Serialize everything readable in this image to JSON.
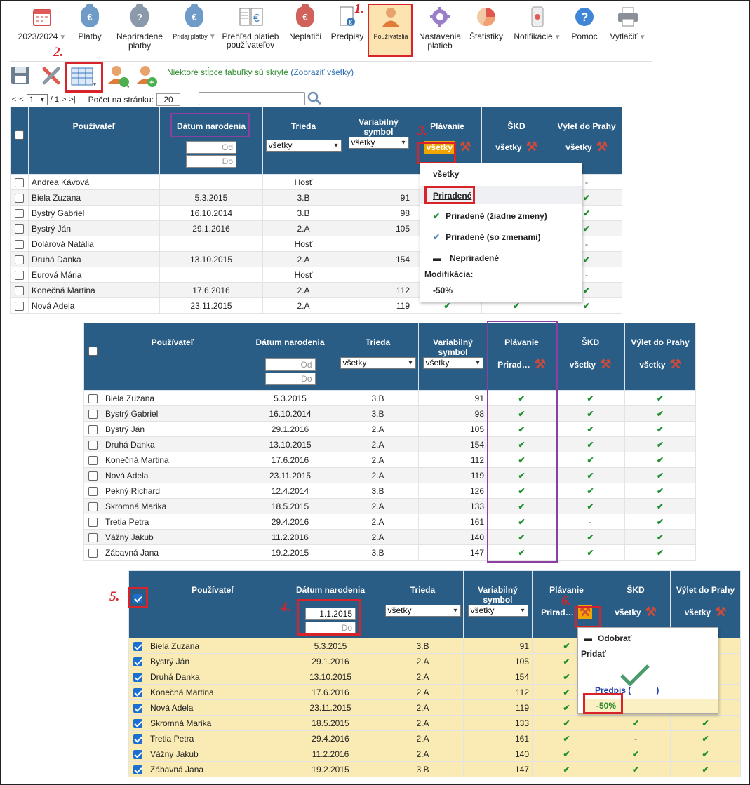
{
  "toolbar": {
    "items": [
      {
        "label": "2023/2024",
        "icon": "calendar-icon"
      },
      {
        "label": "Platby",
        "icon": "money-bag-icon"
      },
      {
        "label": "Nepriradené platby",
        "icon": "money-bag-question-icon"
      },
      {
        "label": "Pridaj platby",
        "icon": "money-bag-add-icon"
      },
      {
        "label": "Prehľad platieb používateľov",
        "icon": "euro-document-icon"
      },
      {
        "label": "Neplatiči",
        "icon": "money-bag-clock-icon"
      },
      {
        "label": "Predpisy",
        "icon": "document-euro-icon"
      },
      {
        "label": "Používatelia",
        "icon": "user-icon"
      },
      {
        "label": "Nastavenia platieb",
        "icon": "gear-icon"
      },
      {
        "label": "Štatistiky",
        "icon": "pie-chart-icon"
      },
      {
        "label": "Notifikácie",
        "icon": "phone-icon"
      },
      {
        "label": "Pomoc",
        "icon": "help-icon"
      },
      {
        "label": "Vytlačiť",
        "icon": "printer-icon"
      }
    ]
  },
  "steps": [
    "1.",
    "2.",
    "3.",
    "4.",
    "5.",
    "6."
  ],
  "hidden_notice": "Niektoré stĺpce tabuľky sú skryté",
  "show_all": "(Zobraziť všetky)",
  "pager": {
    "first": "|<",
    "prev": "<",
    "page": "1",
    "of": "/ 1",
    "next": ">",
    "last": ">|",
    "per_page_label": "Počet na stránku:",
    "per_page": "20"
  },
  "headers": {
    "user": "Používateľ",
    "dob": "Dátum narodenia",
    "class": "Trieda",
    "vs": "Variabilný symbol",
    "swim": "Plávanie",
    "skd": "ŠKD",
    "trip": "Výlet do Prahy"
  },
  "filters": {
    "all": "všetky",
    "from": "Od",
    "to": "Do",
    "assigned_short": "Prirad…",
    "date_from_value": "1.1.2015"
  },
  "table1": [
    [
      "Andrea Kávová",
      "",
      "Hosť",
      "",
      ""
    ],
    [
      "Biela Zuzana",
      "5.3.2015",
      "3.B",
      "91",
      "✔"
    ],
    [
      "Bystrý Gabriel",
      "16.10.2014",
      "3.B",
      "98",
      "✔"
    ],
    [
      "Bystrý Ján",
      "29.1.2016",
      "2.A",
      "105",
      "✔"
    ],
    [
      "Dolárová Natália",
      "",
      "Hosť",
      "",
      "-"
    ],
    [
      "Druhá Danka",
      "13.10.2015",
      "2.A",
      "154",
      "✔"
    ],
    [
      "Eurová Mária",
      "",
      "Hosť",
      "",
      "-"
    ],
    [
      "Konečná Martina",
      "17.6.2016",
      "2.A",
      "112",
      "✔"
    ],
    [
      "Nová Adela",
      "23.11.2015",
      "2.A",
      "119",
      "✔"
    ]
  ],
  "table1_extra": [
    [
      "-",
      "-"
    ],
    [
      "✔",
      "✔"
    ],
    [
      "✔",
      "✔"
    ],
    [
      "✔",
      "✔"
    ],
    [
      "-",
      "-"
    ],
    [
      "✔",
      "✔"
    ],
    [
      "-",
      "-"
    ],
    [
      "✔",
      "✔"
    ],
    [
      "✔",
      "✔"
    ]
  ],
  "table2": [
    [
      "Biela Zuzana",
      "5.3.2015",
      "3.B",
      "91",
      "✔",
      "✔",
      "✔"
    ],
    [
      "Bystrý Gabriel",
      "16.10.2014",
      "3.B",
      "98",
      "✔",
      "✔",
      "✔"
    ],
    [
      "Bystrý Ján",
      "29.1.2016",
      "2.A",
      "105",
      "✔",
      "✔",
      "✔"
    ],
    [
      "Druhá Danka",
      "13.10.2015",
      "2.A",
      "154",
      "✔",
      "✔",
      "✔"
    ],
    [
      "Konečná Martina",
      "17.6.2016",
      "2.A",
      "112",
      "✔",
      "✔",
      "✔"
    ],
    [
      "Nová Adela",
      "23.11.2015",
      "2.A",
      "119",
      "✔",
      "✔",
      "✔"
    ],
    [
      "Pekný Richard",
      "12.4.2014",
      "3.B",
      "126",
      "✔",
      "✔",
      "✔"
    ],
    [
      "Skromná Marika",
      "18.5.2015",
      "2.A",
      "133",
      "✔",
      "✔",
      "✔"
    ],
    [
      "Tretia Petra",
      "29.4.2016",
      "2.A",
      "161",
      "✔",
      "-",
      "✔"
    ],
    [
      "Vážny Jakub",
      "11.2.2016",
      "2.A",
      "140",
      "✔",
      "✔",
      "✔"
    ],
    [
      "Zábavná Jana",
      "19.2.2015",
      "3.B",
      "147",
      "✔",
      "✔",
      "✔"
    ]
  ],
  "table3": [
    [
      "Biela Zuzana",
      "5.3.2015",
      "3.B",
      "91",
      "✔",
      "✔",
      "✔"
    ],
    [
      "Bystrý Ján",
      "29.1.2016",
      "2.A",
      "105",
      "✔",
      "✔",
      "✔"
    ],
    [
      "Druhá Danka",
      "13.10.2015",
      "2.A",
      "154",
      "✔",
      "✔",
      "✔"
    ],
    [
      "Konečná Martina",
      "17.6.2016",
      "2.A",
      "112",
      "✔",
      "✔",
      "✔"
    ],
    [
      "Nová Adela",
      "23.11.2015",
      "2.A",
      "119",
      "✔",
      "✔",
      "✔"
    ],
    [
      "Skromná Marika",
      "18.5.2015",
      "2.A",
      "133",
      "✔",
      "✔",
      "✔"
    ],
    [
      "Tretia Petra",
      "29.4.2016",
      "2.A",
      "161",
      "✔",
      "-",
      "✔"
    ],
    [
      "Vážny Jakub",
      "11.2.2016",
      "2.A",
      "140",
      "✔",
      "✔",
      "✔"
    ],
    [
      "Zábavná Jana",
      "19.2.2015",
      "3.B",
      "147",
      "✔",
      "✔",
      "✔"
    ]
  ],
  "dropdown1": {
    "items": [
      "všetky",
      "Priradené",
      "Priradené (žiadne zmeny)",
      "Priradené (so zmenami)",
      "Nepriradené"
    ],
    "mod_label": "Modifikácia:",
    "mod_value": "-50%"
  },
  "dropdown2": {
    "remove": "Odobrať",
    "add": "Pridať",
    "predpis": "Predpis (",
    "predpis_close": ")",
    "value": "-50%"
  }
}
